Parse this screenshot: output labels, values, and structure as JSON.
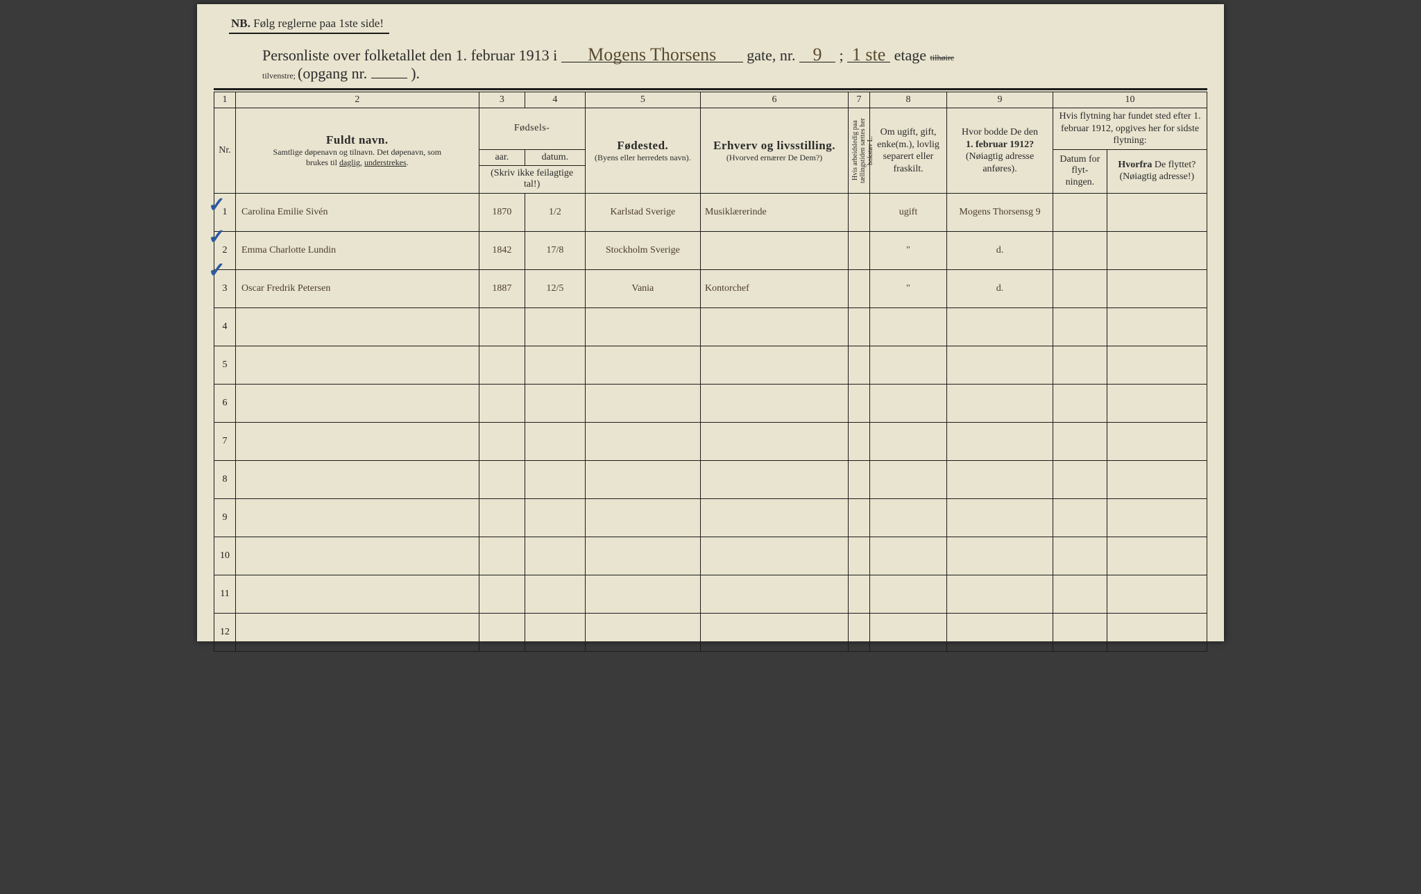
{
  "header": {
    "nb_prefix": "NB.",
    "nb_text": "Følg reglerne paa 1ste side!",
    "title_pre": "Personliste over folketallet den 1. februar 1913 i",
    "street": "Mogens Thorsens",
    "gate_label": "gate, nr.",
    "nr": "9",
    "semi": ";",
    "floor": "1 ste",
    "etage_label": "etage",
    "side_strike": "tilhøire",
    "side_keep": "tilvenstre;",
    "opgang_label": "(opgang nr.",
    "opgang": "",
    "close": ")."
  },
  "colnums": {
    "c1": "1",
    "c2": "2",
    "c3": "3",
    "c4": "4",
    "c5": "5",
    "c6": "6",
    "c7": "7",
    "c8": "8",
    "c9": "9",
    "c10": "10"
  },
  "heads": {
    "nr": "Nr.",
    "fuldt": "Fuldt navn.",
    "fuldt_sub1": "Samtlige døpenavn og tilnavn.  Det døpenavn, som",
    "fuldt_sub2": "brukes til daglig, understrekes.",
    "fodsels": "Fødsels-",
    "aar": "aar.",
    "datum": "datum.",
    "skriv": "(Skriv ikke feilagtige tal!)",
    "fodested": "Fødested.",
    "fodested_sub": "(Byens eller herredets navn).",
    "erhverv": "Erhverv og livsstilling.",
    "erhverv_sub": "(Hvorved ernærer De Dem?)",
    "col7": "Hvis arbeidsledig paa tællingstiden sættes her bokstav L.",
    "col8": "Om ugift, gift, enke(m.), lovlig separert eller fraskilt.",
    "col9a": "Hvor bodde De den",
    "col9b": "1. februar 1912?",
    "col9c": "(Nøiagtig adresse anføres).",
    "col10top": "Hvis flytning har fundet sted efter 1. februar 1912, opgives her for sidste flytning:",
    "col10a": "Datum for flyt- ningen.",
    "col10b_a": "Hvorfra",
    "col10b_b": " De flyttet?",
    "col10b_c": "(Nøiagtig adresse!)"
  },
  "rows": [
    {
      "n": "1",
      "name": "Carolina Emilie Sivén",
      "year": "1870",
      "date": "1/2",
      "place": "Karlstad Sverige",
      "occ": "Musiklærerinde",
      "c7": "",
      "c8": "ugift",
      "c9": "Mogens Thorsensg 9",
      "c10a": "",
      "c10b": ""
    },
    {
      "n": "2",
      "name": "Emma Charlotte Lundin",
      "year": "1842",
      "date": "17/8",
      "place": "Stockholm Sverige",
      "occ": "",
      "c7": "",
      "c8": "\"",
      "c9": "d.",
      "c10a": "",
      "c10b": ""
    },
    {
      "n": "3",
      "name": "Oscar Fredrik Petersen",
      "year": "1887",
      "date": "12/5",
      "place": "Vania",
      "occ": "Kontorchef",
      "c7": "",
      "c8": "\"",
      "c9": "d.",
      "c10a": "",
      "c10b": ""
    },
    {
      "n": "4"
    },
    {
      "n": "5"
    },
    {
      "n": "6"
    },
    {
      "n": "7"
    },
    {
      "n": "8"
    },
    {
      "n": "9"
    },
    {
      "n": "10"
    },
    {
      "n": "11"
    },
    {
      "n": "12"
    }
  ]
}
